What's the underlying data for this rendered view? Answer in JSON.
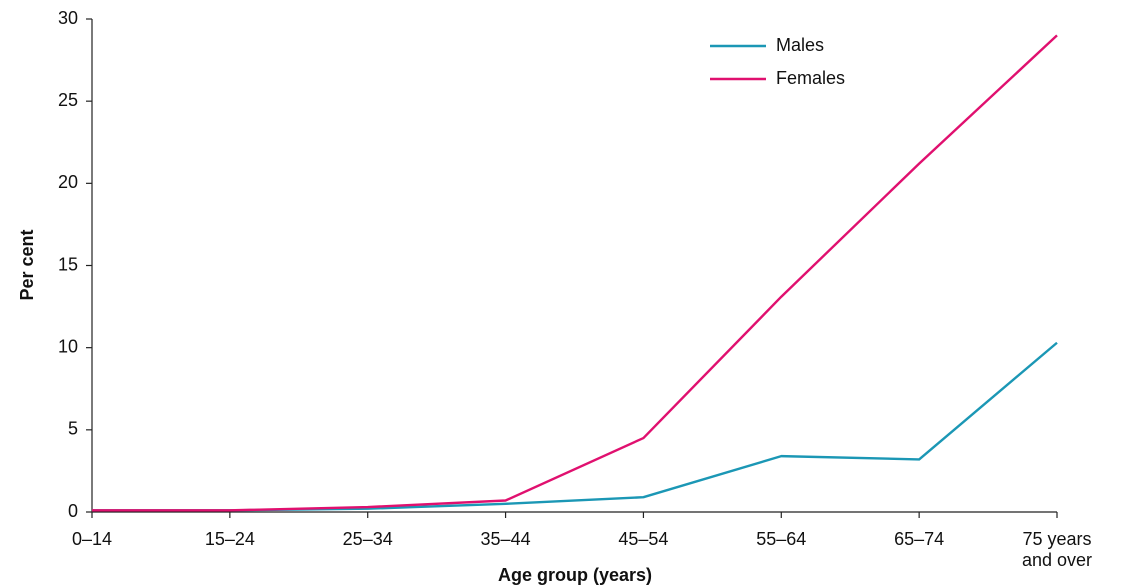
{
  "chart_data": {
    "type": "line",
    "x_label": "Age group (years)",
    "y_label": "Per cent",
    "categories": [
      "0–14",
      "15–24",
      "25–34",
      "35–44",
      "45–54",
      "55–64",
      "65–74",
      "75 years and over"
    ],
    "series": [
      {
        "name": "Males",
        "color": "#1b97b5",
        "values": [
          0.1,
          0.1,
          0.2,
          0.5,
          0.9,
          3.4,
          3.2,
          10.3
        ]
      },
      {
        "name": "Females",
        "color": "#e0106f",
        "values": [
          0.1,
          0.1,
          0.3,
          0.7,
          4.5,
          13.1,
          21.2,
          29
        ]
      }
    ],
    "ylim": [
      0,
      30
    ],
    "yticks": [
      0,
      5,
      10,
      15,
      20,
      25,
      30
    ],
    "grid": false,
    "legend": "top-right"
  }
}
